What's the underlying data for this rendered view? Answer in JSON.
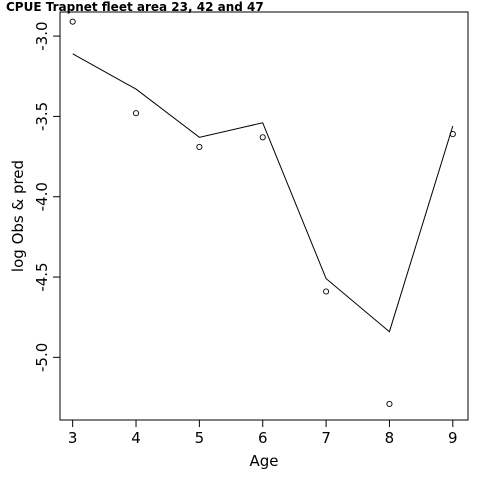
{
  "chart_data": {
    "type": "line",
    "title": "CPUE Trapnet fleet area 23, 42 and 47",
    "xlabel": "Age",
    "ylabel": "log Obs & pred",
    "x": [
      3,
      4,
      5,
      6,
      7,
      8,
      9
    ],
    "xticks": [
      "3",
      "4",
      "5",
      "6",
      "7",
      "8",
      "9"
    ],
    "yticks": [
      "-3.0",
      "-3.5",
      "-4.0",
      "-4.5",
      "-5.0"
    ],
    "ytick_values": [
      -3.0,
      -3.5,
      -4.0,
      -4.5,
      -5.0
    ],
    "xlim": [
      2.8,
      9.24
    ],
    "ylim": [
      -5.39,
      -2.85
    ],
    "grid": false,
    "series": [
      {
        "marker": "line",
        "values": [
          -3.11,
          -3.33,
          -3.63,
          -3.54,
          -4.51,
          -4.84,
          -3.56
        ]
      },
      {
        "marker": "open-circle",
        "values": [
          -2.91,
          -3.48,
          -3.69,
          -3.63,
          -4.59,
          -5.29,
          -3.61
        ]
      }
    ]
  }
}
